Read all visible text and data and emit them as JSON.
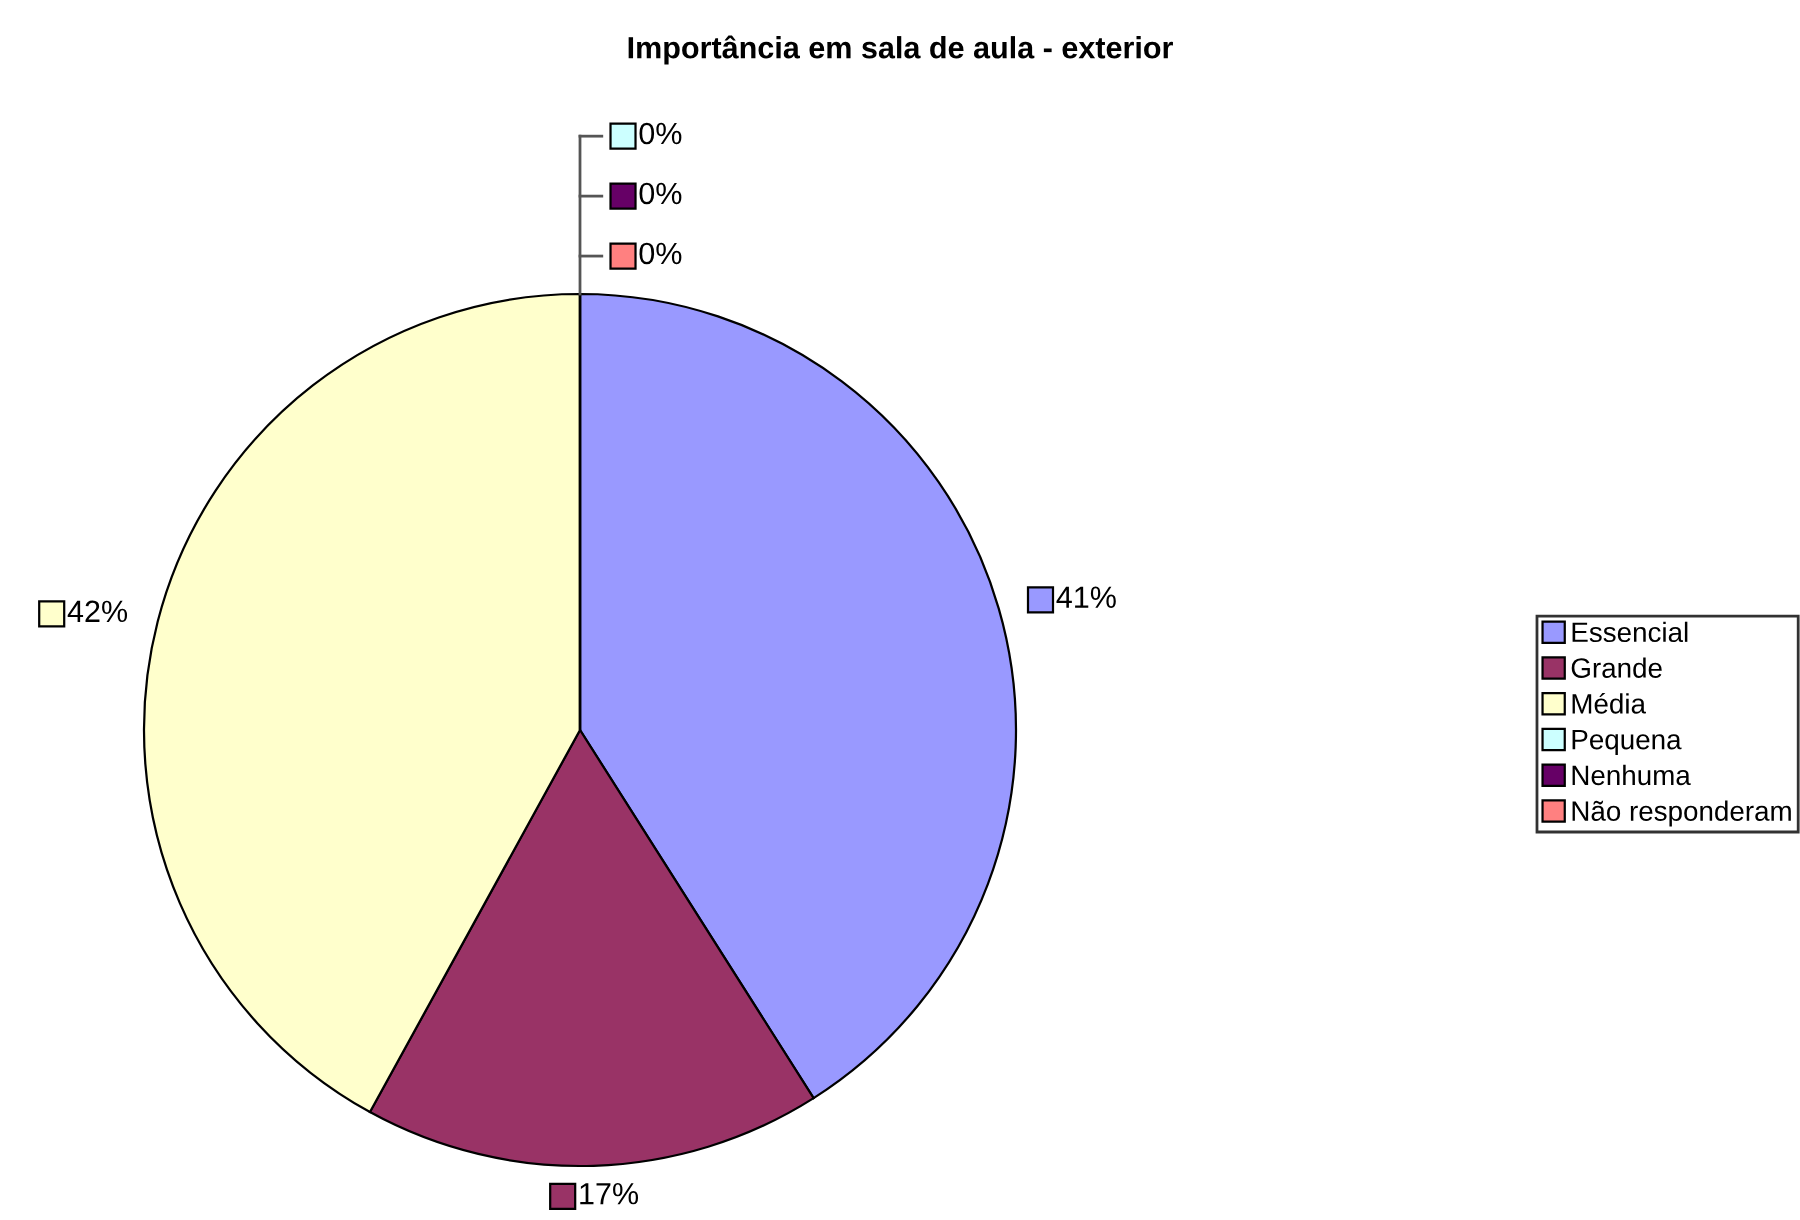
{
  "chart_data": {
    "type": "pie",
    "title": "Importância em sala de aula - exterior",
    "categories": [
      "Essencial",
      "Grande",
      "Média",
      "Pequena",
      "Nenhuma",
      "Não responderam"
    ],
    "values": [
      41,
      17,
      42,
      0,
      0,
      0
    ],
    "colors": [
      "#9999ff",
      "#993366",
      "#ffffcc",
      "#ccffff",
      "#660066",
      "#ff8080"
    ],
    "value_labels": [
      "41%",
      "17%",
      "42%",
      "0%",
      "0%",
      "0%"
    ],
    "legend": "right"
  }
}
